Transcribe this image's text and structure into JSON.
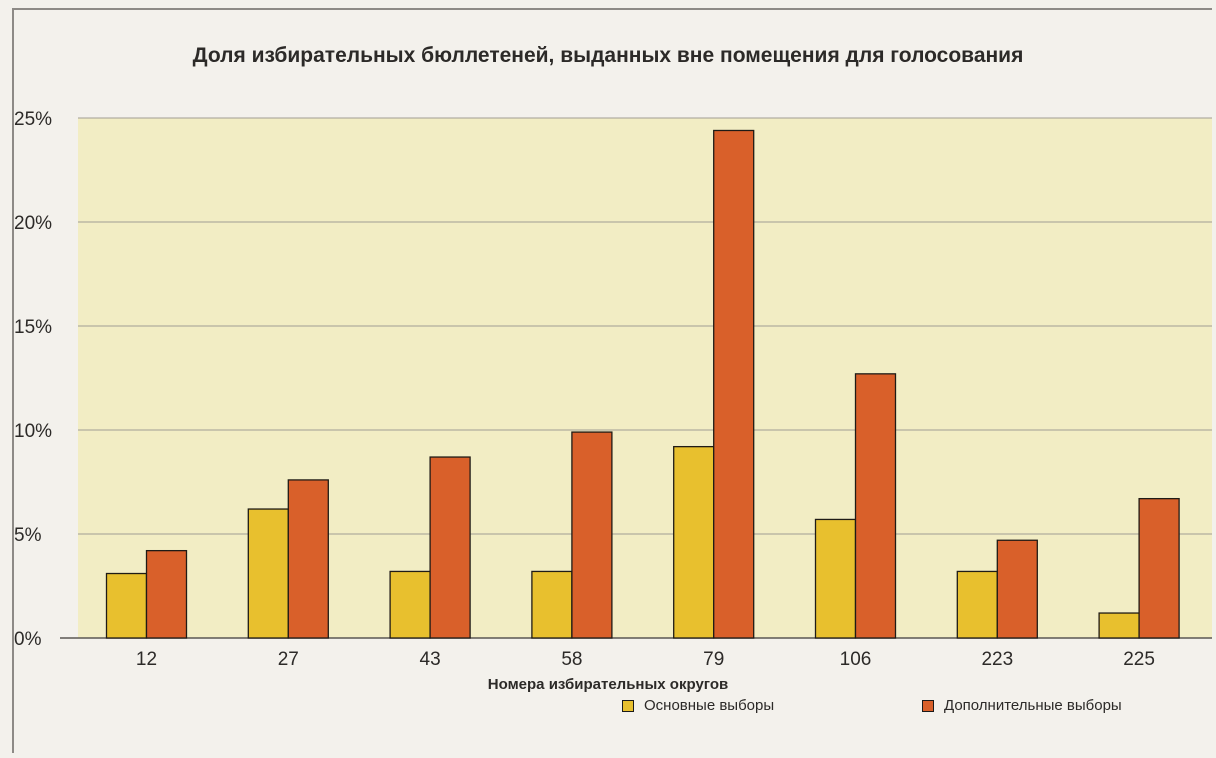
{
  "chart_data": {
    "type": "bar",
    "title": "Доля избирательных бюллетеней, выданных вне помещения для голосования",
    "xlabel": "Номера избирательных округов",
    "ylabel": "",
    "ylim": [
      0,
      25
    ],
    "yticks": [
      "0%",
      "5%",
      "10%",
      "15%",
      "20%",
      "25%"
    ],
    "ytick_values": [
      0,
      5,
      10,
      15,
      20,
      25
    ],
    "grid": true,
    "legend_position": "bottom-right",
    "categories": [
      "12",
      "27",
      "43",
      "58",
      "79",
      "106",
      "223",
      "225"
    ],
    "series": [
      {
        "name": "Основные выборы",
        "color": "#e8c02e",
        "values": [
          3.1,
          6.2,
          3.2,
          3.2,
          9.2,
          5.7,
          3.2,
          1.2
        ]
      },
      {
        "name": "Дополнительные выборы",
        "color": "#d9602a",
        "values": [
          4.2,
          7.6,
          8.7,
          9.9,
          24.4,
          12.7,
          4.7,
          6.7
        ]
      }
    ],
    "colors": {
      "plot_background": "#f2edc4",
      "gridline": "#a09d94",
      "bar_outline": "#1f1b16"
    }
  }
}
